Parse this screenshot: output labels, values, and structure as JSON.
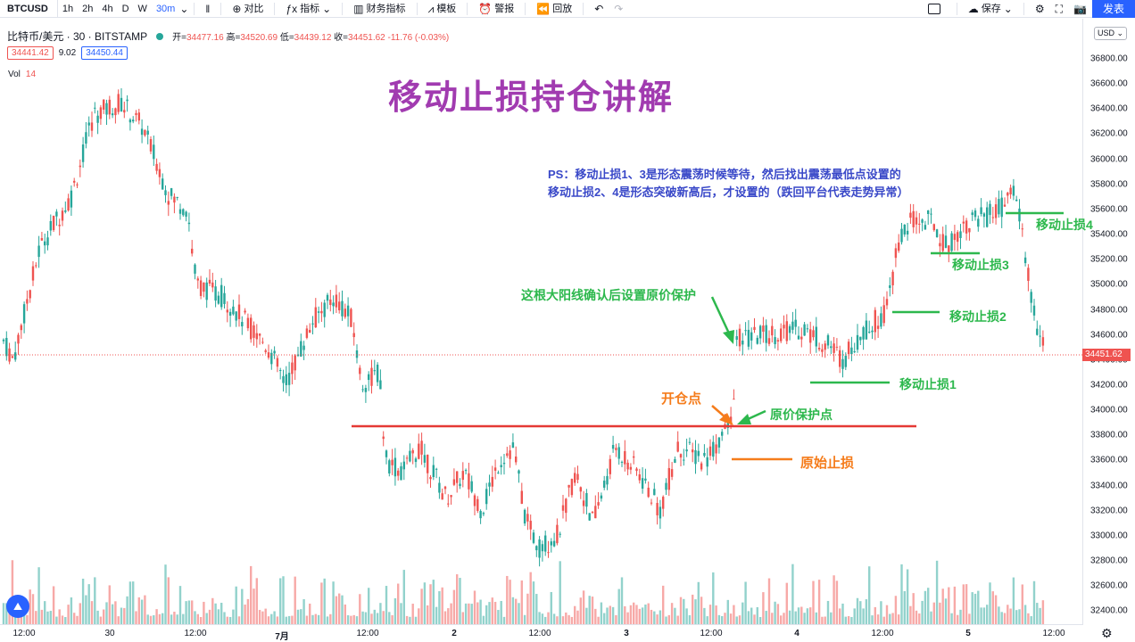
{
  "toolbar": {
    "symbol": "BTCUSD",
    "intervals": [
      "1h",
      "2h",
      "4h",
      "D",
      "W",
      "30m"
    ],
    "compare": "对比",
    "indicators": "指标",
    "financials": "财务指标",
    "templates": "模板",
    "alert": "警报",
    "replay": "回放",
    "save": "保存",
    "publish": "发表"
  },
  "legend": {
    "name": "比特币/美元 · 30 · BITSTAMP",
    "open_label": "开=",
    "open": "34477.16",
    "high_label": "高=",
    "high": "34520.69",
    "low_label": "低=",
    "low": "34439.12",
    "close_label": "收=",
    "close": "34451.62",
    "change": "-11.76 (-0.03%)",
    "bid": "34441.42",
    "spread": "9.02",
    "ask": "34450.44",
    "vol_label": "Vol",
    "vol_value": "14"
  },
  "currency": "USD",
  "price_scale": [
    "36800.00",
    "36600.00",
    "36400.00",
    "36200.00",
    "36000.00",
    "35800.00",
    "35600.00",
    "35400.00",
    "35200.00",
    "35000.00",
    "34800.00",
    "34600.00",
    "34400.00",
    "34200.00",
    "34000.00",
    "33800.00",
    "33600.00",
    "33400.00",
    "33200.00",
    "33000.00",
    "32800.00",
    "32600.00",
    "32400.00"
  ],
  "last_price": "34451.62",
  "time_scale": [
    "12:00",
    "30",
    "12:00",
    "7月",
    "12:00",
    "2",
    "12:00",
    "3",
    "12:00",
    "4",
    "12:00",
    "5",
    "12:00"
  ],
  "annotations": {
    "title": "移动止损持仓讲解",
    "ps_line1": "PS：移动止损1、3是形态震荡时候等待，然后找出震荡最低点设置的",
    "ps_line2": "移动止损2、4是形态突破新高后，才设置的（跌回平台代表走势异常）",
    "big_candle": "这根大阳线确认后设置原价保护",
    "open_point": "开仓点",
    "breakeven": "原价保护点",
    "initial_stop": "原始止损",
    "stop1": "移动止损1",
    "stop2": "移动止损2",
    "stop3": "移动止损3",
    "stop4": "移动止损4"
  },
  "colors": {
    "up": "#26a69a",
    "down": "#ef5350",
    "title": "#a13bb0",
    "ps_text": "#3948c8",
    "green_annotation": "#2db84d",
    "orange_annotation": "#f57c1b",
    "red_line": "#e53935"
  },
  "icons": [
    "candles-icon",
    "plus-circle-icon",
    "fx-icon",
    "bar-chart-icon",
    "template-icon",
    "alarm-icon",
    "rewind-icon",
    "undo-icon",
    "redo-icon",
    "cloud-icon",
    "gear-icon",
    "fullscreen-icon",
    "camera-icon"
  ]
}
